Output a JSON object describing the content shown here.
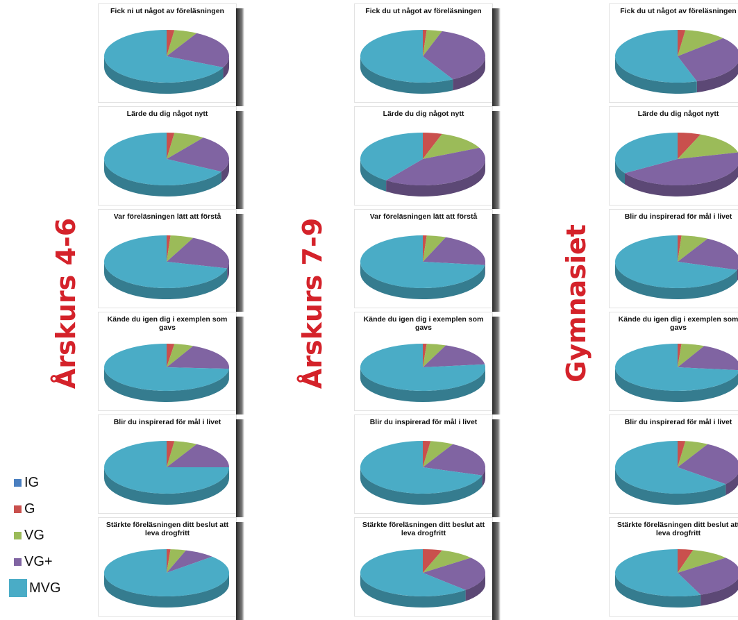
{
  "colors": {
    "IG": "#4a7fc0",
    "G": "#c9504d",
    "VG": "#9bbb59",
    "VG+": "#8064a2",
    "MVG": "#4aacc6"
  },
  "legend": [
    {
      "label": "IG",
      "color": "#4a7fc0"
    },
    {
      "label": "G",
      "color": "#c9504d"
    },
    {
      "label": "VG",
      "color": "#9bbb59"
    },
    {
      "label": "VG+",
      "color": "#8064a2"
    },
    {
      "label": "MVG",
      "color": "#4aacc6"
    }
  ],
  "chart_data": [
    {
      "type": "pie",
      "group": "Årskurs 4-6",
      "charts": [
        {
          "title": "Fick ni ut något av föreläsningen",
          "labels": [
            "IG",
            "G",
            "VG",
            "VG+",
            "MVG"
          ],
          "values": [
            0,
            2,
            6,
            24,
            68
          ]
        },
        {
          "title": "Lärde du dig något nytt",
          "labels": [
            "IG",
            "G",
            "VG",
            "VG+",
            "MVG"
          ],
          "values": [
            0,
            2,
            8,
            23,
            67
          ]
        },
        {
          "title": "Var föreläsningen lätt att förstå",
          "labels": [
            "IG",
            "G",
            "VG",
            "VG+",
            "MVG"
          ],
          "values": [
            0,
            1,
            6,
            22,
            71
          ]
        },
        {
          "title": "Kände du igen dig i exemplen som gavs",
          "labels": [
            "IG",
            "G",
            "VG",
            "VG+",
            "MVG"
          ],
          "values": [
            0,
            2,
            5,
            19,
            74
          ]
        },
        {
          "title": "Blir du inspirerad för mål i livet",
          "labels": [
            "IG",
            "G",
            "VG",
            "VG+",
            "MVG"
          ],
          "values": [
            0,
            2,
            6,
            17,
            75
          ]
        },
        {
          "title": "Stärkte föreläsningen ditt beslut att leva drogfritt",
          "labels": [
            "IG",
            "G",
            "VG",
            "VG+",
            "MVG"
          ],
          "values": [
            0,
            1,
            4,
            8,
            87
          ]
        }
      ]
    },
    {
      "type": "pie",
      "group": "Årskurs 7-9",
      "charts": [
        {
          "title": "Fick du ut något av föreläsningen",
          "labels": [
            "IG",
            "G",
            "VG",
            "VG+",
            "MVG"
          ],
          "values": [
            0,
            1,
            4,
            37,
            58
          ]
        },
        {
          "title": "Lärde du dig något nytt",
          "labels": [
            "IG",
            "G",
            "VG",
            "VG+",
            "MVG"
          ],
          "values": [
            0,
            5,
            13,
            42,
            40
          ]
        },
        {
          "title": "Var föreläsningen lätt att förstå",
          "labels": [
            "IG",
            "G",
            "VG",
            "VG+",
            "MVG"
          ],
          "values": [
            0,
            1,
            5,
            21,
            73
          ]
        },
        {
          "title": "Kände du igen dig i exemplen som gavs",
          "labels": [
            "IG",
            "G",
            "VG",
            "VG+",
            "MVG"
          ],
          "values": [
            0,
            1,
            5,
            17,
            77
          ]
        },
        {
          "title": "Blir du inspirerad för mål i livet",
          "labels": [
            "IG",
            "G",
            "VG",
            "VG+",
            "MVG"
          ],
          "values": [
            0,
            2,
            6,
            22,
            70
          ]
        },
        {
          "title": "Stärkte föreläsningen ditt beslut att leva drogfritt",
          "labels": [
            "IG",
            "G",
            "VG",
            "VG+",
            "MVG"
          ],
          "values": [
            0,
            5,
            9,
            24,
            62
          ]
        }
      ]
    },
    {
      "type": "pie",
      "group": "Gymnasiet",
      "charts": [
        {
          "title": "Fick du ut något av föreläsningen",
          "labels": [
            "IG",
            "G",
            "VG",
            "VG+",
            "MVG"
          ],
          "values": [
            0,
            2,
            11,
            32,
            55
          ]
        },
        {
          "title": "Lärde du dig något nytt",
          "labels": [
            "IG",
            "G",
            "VG",
            "VG+",
            "MVG"
          ],
          "values": [
            0,
            6,
            15,
            45,
            34
          ]
        },
        {
          "title": "Blir du inspirerad för mål i livet",
          "labels": [
            "IG",
            "G",
            "VG",
            "VG+",
            "MVG"
          ],
          "values": [
            0,
            1,
            7,
            22,
            70
          ]
        },
        {
          "title": "Kände du igen dig i exemplen som gavs",
          "labels": [
            "IG",
            "G",
            "VG",
            "VG+",
            "MVG"
          ],
          "values": [
            0,
            1,
            6,
            20,
            73
          ]
        },
        {
          "title": "Blir du inspirerad för mål i livet",
          "labels": [
            "IG",
            "G",
            "VG",
            "VG+",
            "MVG"
          ],
          "values": [
            0,
            2,
            6,
            28,
            64
          ]
        },
        {
          "title": "Stärkte föreläsningen ditt beslut att leva drogfritt",
          "labels": [
            "IG",
            "G",
            "VG",
            "VG+",
            "MVG"
          ],
          "values": [
            0,
            4,
            10,
            30,
            56
          ]
        }
      ]
    }
  ]
}
